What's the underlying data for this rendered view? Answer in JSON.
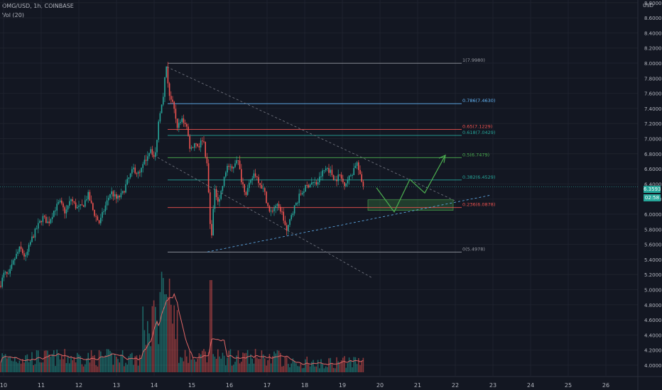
{
  "header": {
    "symbol_line": "OMG/USD, 1h, COINBASE",
    "indicator_line": "Vol (20)",
    "currency": "USD"
  },
  "price_tags": {
    "last": "6.3593",
    "timer": "02:58"
  },
  "colors": {
    "background": "#131722",
    "up": "#26a69a",
    "down": "#ef5350",
    "grid": "#1e222d",
    "axis_text": "#b2b5be",
    "ma": "#e06666"
  },
  "chart_data": {
    "type": "candlestick",
    "y_axis": {
      "ticks": [
        "4.0000",
        "4.2000",
        "4.4000",
        "4.6000",
        "4.8000",
        "5.0000",
        "5.2000",
        "5.4000",
        "5.6000",
        "5.8000",
        "6.0000",
        "6.2000",
        "6.4000",
        "6.6000",
        "6.8000",
        "7.0000",
        "7.2000",
        "7.4000",
        "7.6000",
        "7.8000",
        "8.0000",
        "8.2000",
        "8.4000",
        "8.6000",
        "8.8000"
      ]
    },
    "x_axis": {
      "ticks": [
        "10",
        "11",
        "12",
        "13",
        "14",
        "15",
        "16",
        "17",
        "18",
        "19",
        "20",
        "21",
        "22",
        "23",
        "24",
        "25",
        "26"
      ]
    },
    "fib_levels": [
      {
        "label": "1(7.9980)",
        "value": 7.998,
        "color": "#9598a1"
      },
      {
        "label": "0.786(7.4630)",
        "value": 7.463,
        "color": "#64b5f6"
      },
      {
        "label": "0.65(7.1229)",
        "value": 7.1229,
        "color": "#ef5350"
      },
      {
        "label": "0.618(7.0429)",
        "value": 7.0429,
        "color": "#26a69a"
      },
      {
        "label": "0.5(6.7479)",
        "value": 6.7479,
        "color": "#4caf50"
      },
      {
        "label": "0.382(6.4529)",
        "value": 6.4529,
        "color": "#26a69a"
      },
      {
        "label": "0.236(6.0878)",
        "value": 6.0878,
        "color": "#ef5350"
      },
      {
        "label": "0(5.4978)",
        "value": 5.4978,
        "color": "#9598a1"
      }
    ]
  }
}
